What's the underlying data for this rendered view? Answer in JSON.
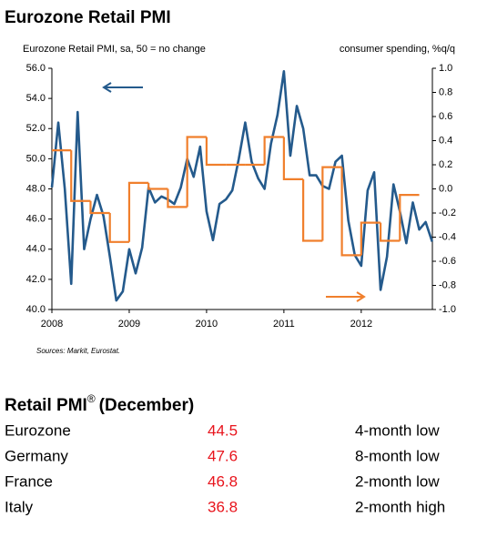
{
  "chart_data": {
    "type": "line",
    "title": "Eurozone Retail PMI",
    "ylabel": "Eurozone Retail PMI, sa, 50 = no change",
    "y2label": "consumer spending, %q/q",
    "source": "Sources: Markit, Eurostat.",
    "xlim": [
      2008,
      2012.92
    ],
    "xticks": [
      2008,
      2009,
      2010,
      2011,
      2012
    ],
    "ylim": [
      40,
      56
    ],
    "yticks": [
      {
        "value": 40,
        "label": "40.0"
      },
      {
        "value": 42,
        "label": "42.0"
      },
      {
        "value": 44,
        "label": "44.0"
      },
      {
        "value": 46,
        "label": "46.0"
      },
      {
        "value": 48,
        "label": "48.0"
      },
      {
        "value": 50,
        "label": "50.0"
      },
      {
        "value": 52,
        "label": "52.0"
      },
      {
        "value": 54,
        "label": "54.0"
      },
      {
        "value": 56,
        "label": "56.0"
      }
    ],
    "y2lim": [
      -1,
      1
    ],
    "y2ticks": [
      {
        "value": -1,
        "label": "-1.0"
      },
      {
        "value": -0.8,
        "label": "-0.8"
      },
      {
        "value": -0.6,
        "label": "-0.6"
      },
      {
        "value": -0.4,
        "label": "-0.4"
      },
      {
        "value": -0.2,
        "label": "-0.2"
      },
      {
        "value": 0,
        "label": "0.0"
      },
      {
        "value": 0.2,
        "label": "0.2"
      },
      {
        "value": 0.4,
        "label": "0.4"
      },
      {
        "value": 0.6,
        "label": "0.6"
      },
      {
        "value": 0.8,
        "label": "0.8"
      },
      {
        "value": 1,
        "label": "1.0"
      }
    ],
    "grid": false,
    "series": [
      {
        "color": "#245a8c",
        "axis": "y",
        "x": [
          2008,
          2008.083,
          2008.167,
          2008.25,
          2008.333,
          2008.417,
          2008.5,
          2008.583,
          2008.667,
          2008.75,
          2008.833,
          2008.917,
          2009,
          2009.083,
          2009.167,
          2009.25,
          2009.333,
          2009.417,
          2009.5,
          2009.583,
          2009.667,
          2009.75,
          2009.833,
          2009.917,
          2010,
          2010.083,
          2010.167,
          2010.25,
          2010.333,
          2010.417,
          2010.5,
          2010.583,
          2010.667,
          2010.75,
          2010.833,
          2010.917,
          2011,
          2011.083,
          2011.167,
          2011.25,
          2011.333,
          2011.417,
          2011.5,
          2011.583,
          2011.667,
          2011.75,
          2011.833,
          2011.917,
          2012,
          2012.083,
          2012.167,
          2012.25,
          2012.333,
          2012.417,
          2012.5,
          2012.583,
          2012.667,
          2012.75,
          2012.833,
          2012.917
        ],
        "values": [
          48.1,
          52.4,
          48.0,
          41.7,
          53.1,
          44.0,
          46.0,
          47.6,
          46.2,
          43.5,
          40.6,
          41.2,
          44.0,
          42.4,
          44.1,
          48.1,
          47.1,
          47.5,
          47.3,
          47.0,
          48.1,
          50.0,
          48.8,
          50.8,
          46.5,
          44.6,
          47.0,
          47.3,
          47.9,
          50.0,
          52.4,
          49.8,
          48.7,
          48.0,
          51.0,
          52.9,
          55.8,
          50.2,
          53.5,
          52.0,
          48.9,
          48.9,
          48.2,
          48.0,
          49.8,
          50.2,
          45.9,
          43.6,
          42.9,
          47.9,
          49.1,
          41.3,
          43.5,
          48.3,
          46.5,
          44.4,
          47.1,
          45.3,
          45.8,
          44.5
        ]
      },
      {
        "color": "#f07f2c",
        "axis": "y2",
        "step": true,
        "x": [
          2008,
          2008.25,
          2008.5,
          2008.75,
          2009,
          2009.25,
          2009.5,
          2009.75,
          2010,
          2010.25,
          2010.5,
          2010.75,
          2011,
          2011.25,
          2011.5,
          2011.75,
          2012,
          2012.25,
          2012.5
        ],
        "values": [
          0.32,
          -0.1,
          -0.2,
          -0.44,
          0.05,
          0.0,
          -0.15,
          0.43,
          0.2,
          0.2,
          0.2,
          0.43,
          0.08,
          -0.43,
          0.18,
          -0.55,
          -0.28,
          -0.43,
          -0.05
        ]
      }
    ]
  },
  "table": {
    "title": "Retail PMI",
    "title_mark": "®",
    "title_suffix": "(December)",
    "rows": [
      [
        "Eurozone",
        44.5,
        "4-month low"
      ],
      [
        "Germany",
        47.6,
        "8-month low"
      ],
      [
        "France",
        46.8,
        "2-month low"
      ],
      [
        "Italy",
        36.8,
        "2-month high"
      ]
    ]
  }
}
